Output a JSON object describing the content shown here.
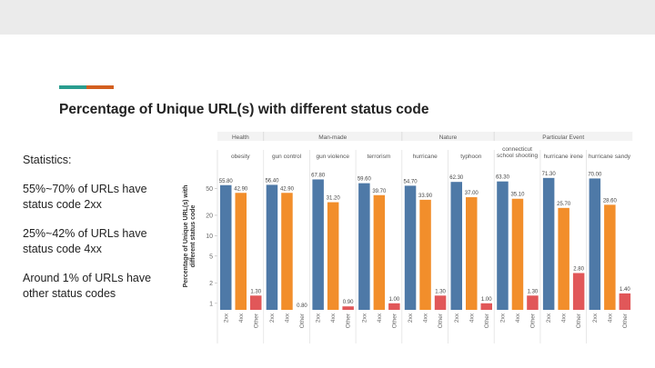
{
  "slide": {
    "title": "Percentage of Unique URL(s) with different status code",
    "stats_heading": "Statistics:",
    "stats": [
      "55%~70% of URLs have status code 2xx",
      "25%~42% of URLs have status code 4xx",
      "Around 1% of URLs have other status codes"
    ]
  },
  "colors": {
    "2xx": "#4e79a7",
    "4xx": "#f28e2b",
    "Other": "#e15759"
  },
  "chart_data": {
    "type": "bar",
    "title": "",
    "ylabel": "Percentage of Unique URL(s) with different status code",
    "yscale": "log",
    "yticks": [
      1,
      2,
      5,
      10,
      20,
      50
    ],
    "ylim": [
      0.8,
      120
    ],
    "groups": [
      {
        "name": "Health",
        "categories": [
          "obesity"
        ]
      },
      {
        "name": "Man-made",
        "categories": [
          "gun control",
          "gun violence",
          "terrorism"
        ]
      },
      {
        "name": "Nature",
        "categories": [
          "hurricane",
          "typhoon"
        ]
      },
      {
        "name": "Particular Event",
        "categories": [
          "connecticut school shooting",
          "hurricane irene",
          "hurricane sandy"
        ]
      }
    ],
    "series_names": [
      "2xx",
      "4xx",
      "Other"
    ],
    "panels": [
      {
        "label": "obesity",
        "values": [
          55.8,
          42.9,
          1.3
        ],
        "labels": [
          "55.80",
          "42.90",
          "1.30"
        ]
      },
      {
        "label": "gun control",
        "values": [
          56.4,
          42.9,
          0.8
        ],
        "labels": [
          "56.40",
          "42.90",
          "0.80"
        ]
      },
      {
        "label": "gun violence",
        "values": [
          67.8,
          31.2,
          0.9
        ],
        "labels": [
          "67.80",
          "31.20",
          "0.90"
        ]
      },
      {
        "label": "terrorism",
        "values": [
          59.6,
          39.7,
          1.0
        ],
        "labels": [
          "59.60",
          "39.70",
          "1.00"
        ]
      },
      {
        "label": "hurricane",
        "values": [
          54.7,
          33.9,
          1.3
        ],
        "labels": [
          "54.70",
          "33.90",
          "1.30"
        ]
      },
      {
        "label": "typhoon",
        "values": [
          62.3,
          37.0,
          1.0
        ],
        "labels": [
          "62.30",
          "37.00",
          "1.00"
        ]
      },
      {
        "label": "connecticut school shooting",
        "values": [
          63.3,
          35.1,
          1.3
        ],
        "labels": [
          "63.30",
          "35.10",
          "1.30"
        ]
      },
      {
        "label": "hurricane irene",
        "values": [
          71.3,
          25.7,
          2.8
        ],
        "labels": [
          "71.30",
          "25.70",
          "2.80"
        ]
      },
      {
        "label": "hurricane sandy",
        "values": [
          70.0,
          28.6,
          1.4
        ],
        "labels": [
          "70.00",
          "28.60",
          "1.40"
        ]
      }
    ]
  }
}
